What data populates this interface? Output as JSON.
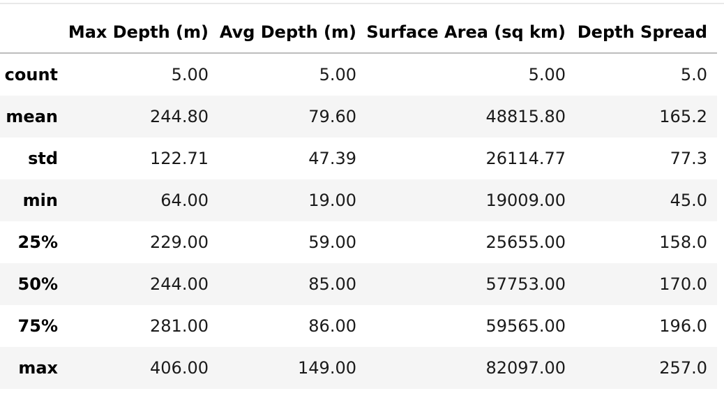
{
  "table": {
    "columns": [
      "Max Depth (m)",
      "Avg Depth (m)",
      "Surface Area (sq km)",
      "Depth Spread"
    ],
    "rows": [
      {
        "index": "count",
        "values": [
          "5.00",
          "5.00",
          "5.00",
          "5.0"
        ]
      },
      {
        "index": "mean",
        "values": [
          "244.80",
          "79.60",
          "48815.80",
          "165.2"
        ]
      },
      {
        "index": "std",
        "values": [
          "122.71",
          "47.39",
          "26114.77",
          "77.3"
        ]
      },
      {
        "index": "min",
        "values": [
          "64.00",
          "19.00",
          "19009.00",
          "45.0"
        ]
      },
      {
        "index": "25%",
        "values": [
          "229.00",
          "59.00",
          "25655.00",
          "158.0"
        ]
      },
      {
        "index": "50%",
        "values": [
          "244.00",
          "85.00",
          "57753.00",
          "170.0"
        ]
      },
      {
        "index": "75%",
        "values": [
          "281.00",
          "86.00",
          "59565.00",
          "196.0"
        ]
      },
      {
        "index": "max",
        "values": [
          "406.00",
          "149.00",
          "82097.00",
          "257.0"
        ]
      }
    ]
  }
}
